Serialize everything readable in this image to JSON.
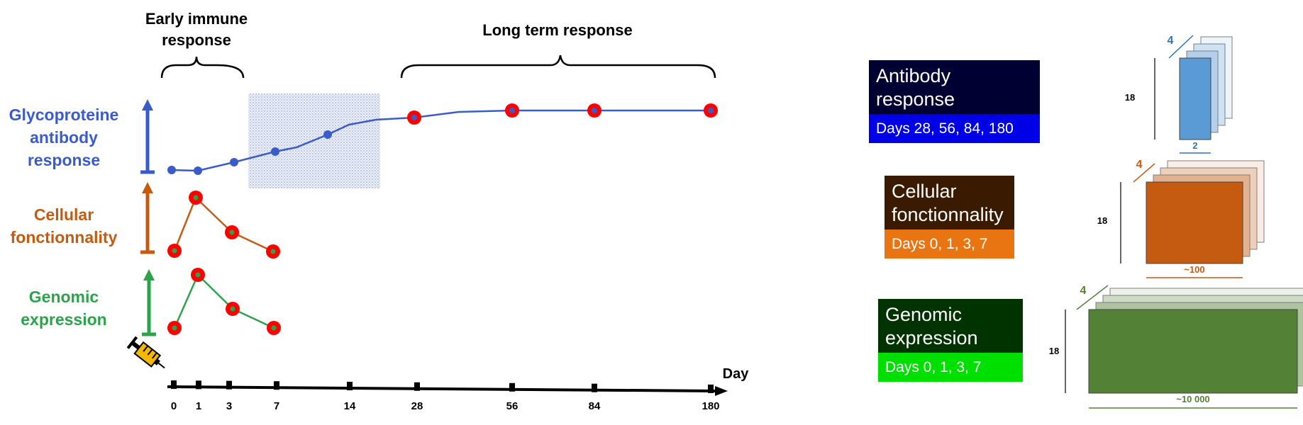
{
  "timeline": {
    "early_title_1": "Early immune",
    "early_title_2": "response",
    "long_title": "Long term response",
    "axis_label": "Day",
    "days": [
      "0",
      "1",
      "3",
      "7",
      "14",
      "28",
      "56",
      "84",
      "180"
    ],
    "rows": {
      "antibody": {
        "label_lines": [
          "Glycoproteine",
          "antibody",
          "response"
        ]
      },
      "cellular": {
        "label_lines": [
          "Cellular",
          "fonctionnality"
        ]
      },
      "genomic": {
        "label_lines": [
          "Genomic",
          "expression"
        ]
      }
    }
  },
  "panels": [
    {
      "title_lines": [
        "Antibody",
        "response"
      ],
      "days": "Days 28, 56, 84, 180",
      "head_color": "#000033",
      "days_color": "#0000e6"
    },
    {
      "title_lines": [
        "Cellular",
        "fonctionnality"
      ],
      "days": "Days 0, 1, 3, 7",
      "head_color": "#3a1a00",
      "days_color": "#e87511"
    },
    {
      "title_lines": [
        "Genomic",
        "expression"
      ],
      "days": "Days 0, 1, 3, 7",
      "head_color": "#003300",
      "days_color": "#00e000"
    }
  ],
  "tensors": [
    {
      "depth": "4",
      "rows": "18",
      "cols": "2",
      "color": "#5b9bd5"
    },
    {
      "depth": "4",
      "rows": "18",
      "cols": "~100",
      "color": "#c55a11"
    },
    {
      "depth": "4",
      "rows": "18",
      "cols": "~10 000",
      "color": "#538135"
    }
  ],
  "colors": {
    "antibody": "#3a5cc9",
    "cellular": "#c55a11",
    "genomic": "#2aa34a",
    "marker": "#ff0000",
    "syringe": "#f5b800"
  }
}
